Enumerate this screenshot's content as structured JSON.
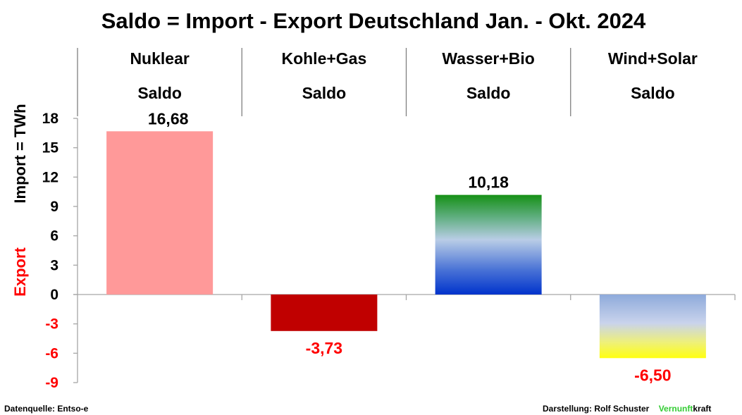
{
  "chart_data": {
    "type": "bar",
    "title": "Saldo = Import - Export Deutschland Jan. - Okt. 2024",
    "categories": [
      "Nuklear",
      "Kohle+Gas",
      "Wasser+Bio",
      "Wind+Solar"
    ],
    "category_sublabel": "Saldo",
    "values": [
      16.68,
      -3.73,
      10.18,
      -6.5
    ],
    "value_labels": [
      "16,68",
      "-3,73",
      "10,18",
      "-6,50"
    ],
    "ylim": [
      -9,
      18
    ],
    "yticks": [
      18,
      15,
      12,
      9,
      6,
      3,
      0,
      -3,
      -6,
      -9
    ],
    "ylabel_import": "Import =  TWh",
    "ylabel_export": "Export",
    "negative_label_color": "#ff0000",
    "positive_label_color": "#000000",
    "bar_fills": [
      "nuklear",
      "kohle",
      "wasser",
      "wind"
    ],
    "bar_colors": {
      "nuklear": "#ff9999",
      "kohle": "#c00000",
      "wasser_top": "#1a9a1a",
      "wasser_bottom": "#0033cc",
      "wind_top": "#8eaadb",
      "wind_bottom": "#ffff00"
    }
  },
  "footer": {
    "source": "Datenquelle: Entso-e",
    "credit": "Darstellung:  Rolf Schuster",
    "brand_green": "Vernunft",
    "brand_black": "kraft",
    "brand_color": "#33cc33"
  }
}
